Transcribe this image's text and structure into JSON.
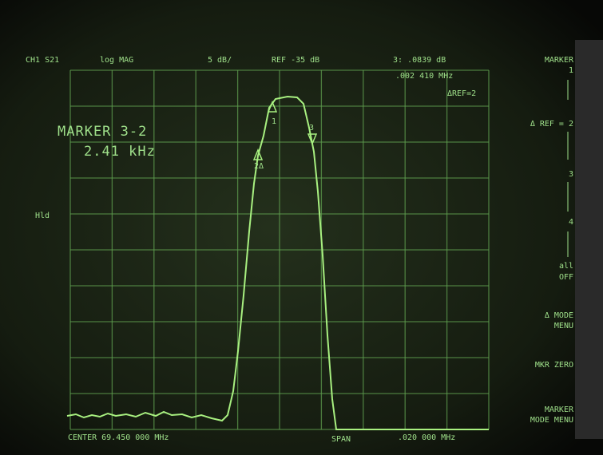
{
  "header": {
    "channel": "CH1 S21",
    "format": "log MAG",
    "scale": "5 dB/",
    "reference": "REF -35 dB",
    "marker_readout": "3: .0839 dB",
    "marker_freq": ".002 410 MHz",
    "delta_ref": "ΔREF=2"
  },
  "side_label": "Hld",
  "marker_box": {
    "title": "MARKER 3-2",
    "value": "2.41 kHz"
  },
  "trace_markers": [
    "1",
    "2Δ",
    "3"
  ],
  "footer": {
    "center": "CENTER  69.450 000 MHz",
    "span": "SPAN",
    "span_value": ".020 000 MHz"
  },
  "softkeys": [
    "MARKER",
    "1",
    "Δ REF = 2",
    "3",
    "4",
    "all",
    "OFF",
    "Δ MODE",
    "MENU",
    "MKR ZERO",
    "MARKER",
    "MODE MENU"
  ]
}
